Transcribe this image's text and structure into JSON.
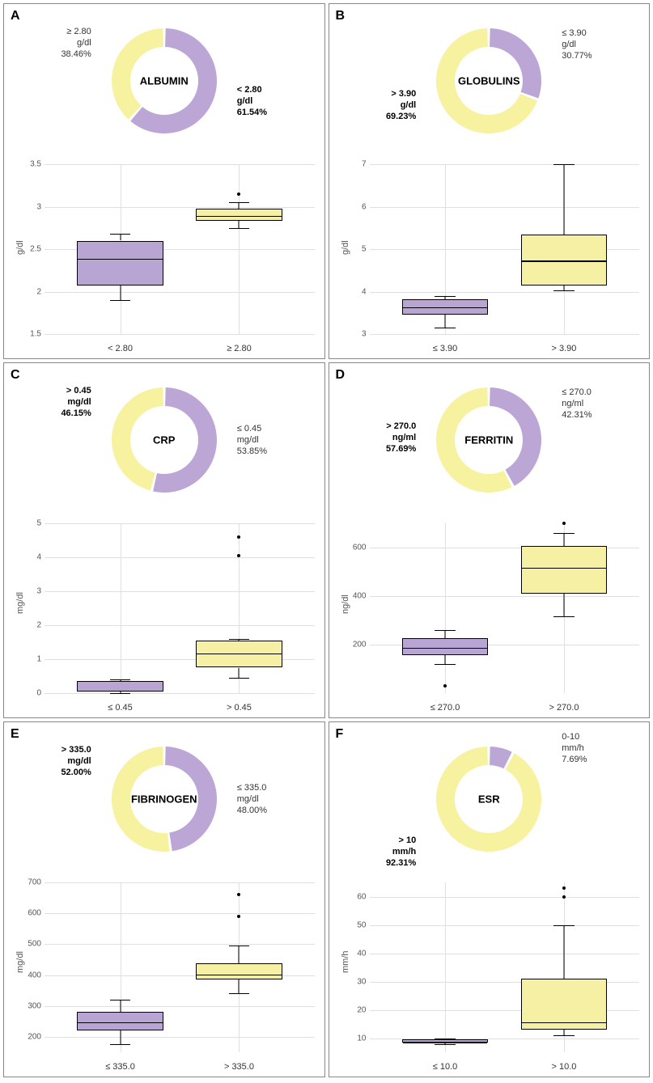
{
  "colors": {
    "purple": "#bba6d6",
    "yellow": "#f7f2a0",
    "purple_fill": "#b9a5d4",
    "yellow_fill": "#f5f0a3",
    "border": "#888888",
    "grid": "#e0e0e0",
    "text": "#333333"
  },
  "panels": [
    {
      "id": "A",
      "title": "ALBUMIN",
      "y_unit": "g/dl",
      "donut": {
        "slices": [
          {
            "pct": 61.54,
            "color": "#bba6d6",
            "label": "< 2.80 g/dl",
            "label2": "61.54%",
            "pos": "right-lower",
            "bold": true
          },
          {
            "pct": 38.46,
            "color": "#f7f2a0",
            "label": "≥ 2.80 g/dl",
            "label2": "38.46%",
            "pos": "left-upper",
            "bold": false
          }
        ]
      },
      "ylim": [
        1.5,
        3.5
      ],
      "yticks": [
        1.5,
        2.0,
        2.5,
        3.0,
        3.5
      ],
      "xcats": [
        "< 2.80",
        "≥ 2.80"
      ],
      "boxes": [
        {
          "q1": 2.07,
          "med": 2.4,
          "q3": 2.6,
          "lo": 1.9,
          "hi": 2.68,
          "color": "#b9a5d4",
          "outliers": []
        },
        {
          "q1": 2.83,
          "med": 2.9,
          "q3": 2.98,
          "lo": 2.75,
          "hi": 3.05,
          "color": "#f5f0a3",
          "outliers": [
            3.15
          ]
        }
      ]
    },
    {
      "id": "B",
      "title": "GLOBULINS",
      "y_unit": "g/dl",
      "donut": {
        "slices": [
          {
            "pct": 30.77,
            "color": "#bba6d6",
            "label": "≤ 3.90 g/dl",
            "label2": "30.77%",
            "pos": "right-upper",
            "bold": false
          },
          {
            "pct": 69.23,
            "color": "#f7f2a0",
            "label": "> 3.90 g/dl",
            "label2": "69.23%",
            "pos": "left-lower",
            "bold": true
          }
        ]
      },
      "ylim": [
        3,
        7
      ],
      "yticks": [
        3,
        4,
        5,
        6,
        7
      ],
      "xcats": [
        "≤ 3.90",
        "> 3.90"
      ],
      "boxes": [
        {
          "q1": 3.45,
          "med": 3.65,
          "q3": 3.82,
          "lo": 3.15,
          "hi": 3.9,
          "color": "#b9a5d4",
          "outliers": []
        },
        {
          "q1": 4.15,
          "med": 4.75,
          "q3": 5.35,
          "lo": 4.02,
          "hi": 7.0,
          "color": "#f5f0a3",
          "outliers": []
        }
      ]
    },
    {
      "id": "C",
      "title": "CRP",
      "y_unit": "mg/dl",
      "donut": {
        "slices": [
          {
            "pct": 53.85,
            "color": "#bba6d6",
            "label": "≤ 0.45 mg/dl",
            "label2": "53.85%",
            "pos": "right-mid",
            "bold": false
          },
          {
            "pct": 46.15,
            "color": "#f7f2a0",
            "label": "> 0.45 mg/dl",
            "label2": "46.15%",
            "pos": "left-upper",
            "bold": true
          }
        ]
      },
      "ylim": [
        0,
        5
      ],
      "yticks": [
        0,
        1,
        2,
        3,
        4,
        5
      ],
      "xcats": [
        "≤ 0.45",
        "> 0.45"
      ],
      "boxes": [
        {
          "q1": 0.05,
          "med": 0.1,
          "q3": 0.35,
          "lo": 0.01,
          "hi": 0.4,
          "color": "#b9a5d4",
          "outliers": []
        },
        {
          "q1": 0.75,
          "med": 1.2,
          "q3": 1.55,
          "lo": 0.45,
          "hi": 1.6,
          "color": "#f5f0a3",
          "outliers": [
            4.05,
            4.6
          ]
        }
      ]
    },
    {
      "id": "D",
      "title": "FERRITIN",
      "y_unit": "ng/dl",
      "donut": {
        "slices": [
          {
            "pct": 42.31,
            "color": "#bba6d6",
            "label": "≤ 270.0 ng/ml",
            "label2": "42.31%",
            "pos": "right-upper",
            "bold": false
          },
          {
            "pct": 57.69,
            "color": "#f7f2a0",
            "label": "> 270.0 ng/ml",
            "label2": "57.69%",
            "pos": "left-mid",
            "bold": true
          }
        ]
      },
      "ylim": [
        0,
        700
      ],
      "yticks": [
        200,
        400,
        600
      ],
      "xcats": [
        "≤ 270.0",
        "> 270.0"
      ],
      "boxes": [
        {
          "q1": 158,
          "med": 190,
          "q3": 228,
          "lo": 120,
          "hi": 260,
          "color": "#b9a5d4",
          "outliers": [
            30
          ]
        },
        {
          "q1": 410,
          "med": 520,
          "q3": 608,
          "lo": 318,
          "hi": 660,
          "color": "#f5f0a3",
          "outliers": [
            700
          ]
        }
      ]
    },
    {
      "id": "E",
      "title": "FIBRINOGEN",
      "y_unit": "mg/dl",
      "donut": {
        "slices": [
          {
            "pct": 48.0,
            "color": "#bba6d6",
            "label": "≤ 335.0 mg/dl",
            "label2": "48.00%",
            "pos": "right-mid",
            "bold": false
          },
          {
            "pct": 52.0,
            "color": "#f7f2a0",
            "label": "> 335.0 mg/dl",
            "label2": "52.00%",
            "pos": "left-upper",
            "bold": true
          }
        ]
      },
      "ylim": [
        150,
        700
      ],
      "yticks": [
        200,
        300,
        400,
        500,
        600,
        700
      ],
      "xcats": [
        "≤ 335.0",
        "> 335.0"
      ],
      "boxes": [
        {
          "q1": 220,
          "med": 250,
          "q3": 280,
          "lo": 175,
          "hi": 320,
          "color": "#b9a5d4",
          "outliers": []
        },
        {
          "q1": 385,
          "med": 405,
          "q3": 438,
          "lo": 340,
          "hi": 495,
          "color": "#f5f0a3",
          "outliers": [
            590,
            660
          ]
        }
      ]
    },
    {
      "id": "F",
      "title": "ESR",
      "y_unit": "mm/h",
      "donut": {
        "slices": [
          {
            "pct": 7.69,
            "color": "#bba6d6",
            "label": "0-10 mm/h",
            "label2": "7.69%",
            "pos": "right-upper-far",
            "bold": false
          },
          {
            "pct": 92.31,
            "color": "#f7f2a0",
            "label": "> 10 mm/h",
            "label2": "92.31%",
            "pos": "left-lower-far",
            "bold": true
          }
        ]
      },
      "ylim": [
        5,
        65
      ],
      "yticks": [
        10,
        20,
        30,
        40,
        50,
        60
      ],
      "xcats": [
        "≤ 10.0",
        "> 10.0"
      ],
      "boxes": [
        {
          "q1": 8.5,
          "med": 9.0,
          "q3": 9.5,
          "lo": 8.0,
          "hi": 10.0,
          "color": "#b9a5d4",
          "outliers": []
        },
        {
          "q1": 13,
          "med": 16,
          "q3": 31,
          "lo": 11,
          "hi": 50,
          "color": "#f5f0a3",
          "outliers": [
            60,
            63
          ]
        }
      ]
    }
  ]
}
